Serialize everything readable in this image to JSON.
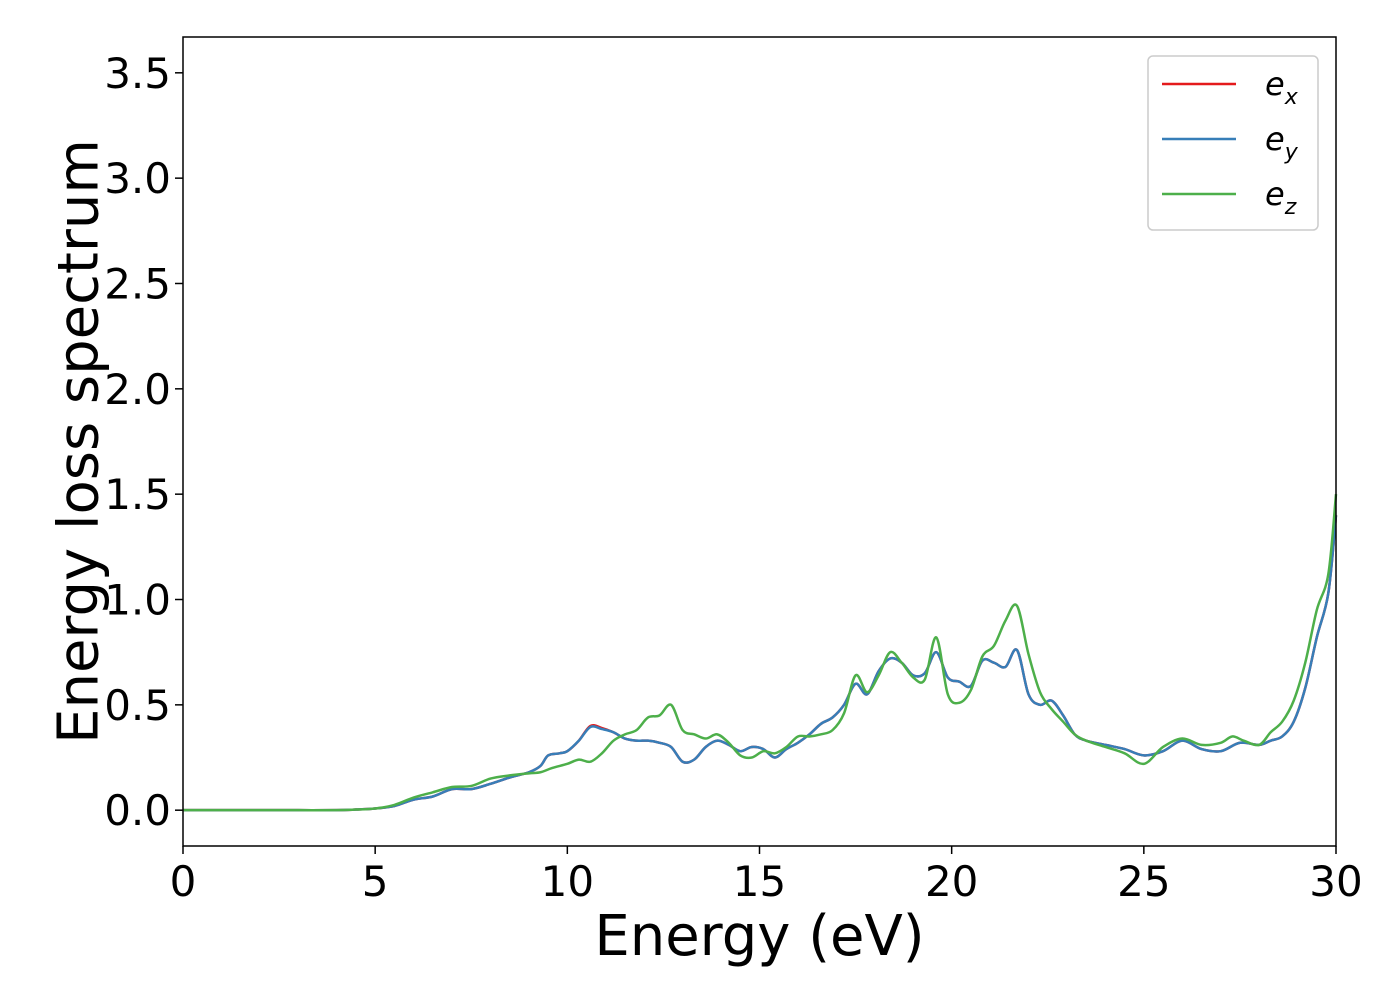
{
  "chart_data": {
    "type": "line",
    "xlabel": "Energy (eV)",
    "ylabel": "Energy loss spectrum",
    "xlim": [
      0,
      30
    ],
    "ylim": [
      -0.17,
      3.67
    ],
    "xticks": [
      0,
      5,
      10,
      15,
      20,
      25,
      30
    ],
    "yticks": [
      0.0,
      0.5,
      1.0,
      1.5,
      2.0,
      2.5,
      3.0,
      3.5
    ],
    "xtick_labels": [
      "0",
      "5",
      "10",
      "15",
      "20",
      "25",
      "30"
    ],
    "ytick_labels": [
      "0.0",
      "0.5",
      "1.0",
      "1.5",
      "2.0",
      "2.5",
      "3.0",
      "3.5"
    ],
    "grid": false,
    "legend_position": "top-right",
    "series": [
      {
        "name": "e_x",
        "legend_base": "e",
        "legend_sub": "x",
        "color": "#e41a1c",
        "x": [
          0,
          1,
          2,
          3,
          4,
          4.5,
          5,
          5.5,
          6,
          6.5,
          7,
          7.5,
          8,
          8.5,
          9,
          9.3,
          9.5,
          9.8,
          10,
          10.3,
          10.6,
          10.9,
          11.2,
          11.5,
          11.8,
          12.1,
          12.4,
          12.7,
          13,
          13.3,
          13.6,
          13.9,
          14.2,
          14.5,
          14.8,
          15.1,
          15.4,
          15.7,
          16,
          16.3,
          16.6,
          16.9,
          17.2,
          17.5,
          17.8,
          18.1,
          18.4,
          18.7,
          19,
          19.3,
          19.6,
          19.9,
          20.2,
          20.5,
          20.8,
          21.1,
          21.4,
          21.7,
          22,
          22.3,
          22.6,
          22.9,
          23.2,
          23.5,
          24,
          24.5,
          25,
          25.5,
          26,
          26.5,
          27,
          27.5,
          28,
          28.3,
          28.6,
          28.9,
          29.2,
          29.5,
          29.8,
          30
        ],
        "y": [
          0,
          0,
          0,
          0,
          0,
          0.003,
          0.008,
          0.02,
          0.05,
          0.065,
          0.1,
          0.1,
          0.125,
          0.155,
          0.18,
          0.21,
          0.26,
          0.27,
          0.28,
          0.33,
          0.4,
          0.39,
          0.37,
          0.34,
          0.33,
          0.33,
          0.32,
          0.3,
          0.23,
          0.24,
          0.3,
          0.33,
          0.31,
          0.28,
          0.3,
          0.29,
          0.25,
          0.29,
          0.32,
          0.36,
          0.41,
          0.44,
          0.5,
          0.6,
          0.55,
          0.66,
          0.72,
          0.7,
          0.64,
          0.65,
          0.75,
          0.63,
          0.61,
          0.59,
          0.71,
          0.7,
          0.68,
          0.76,
          0.55,
          0.5,
          0.52,
          0.45,
          0.36,
          0.33,
          0.31,
          0.29,
          0.26,
          0.28,
          0.33,
          0.29,
          0.28,
          0.32,
          0.31,
          0.33,
          0.35,
          0.42,
          0.58,
          0.82,
          1.03,
          1.4
        ]
      },
      {
        "name": "e_y",
        "legend_base": "e",
        "legend_sub": "y",
        "color": "#377eb8",
        "x": [
          0,
          1,
          2,
          3,
          4,
          4.5,
          5,
          5.5,
          6,
          6.5,
          7,
          7.5,
          8,
          8.5,
          9,
          9.3,
          9.5,
          9.8,
          10,
          10.3,
          10.6,
          10.9,
          11.2,
          11.5,
          11.8,
          12.1,
          12.4,
          12.7,
          13,
          13.3,
          13.6,
          13.9,
          14.2,
          14.5,
          14.8,
          15.1,
          15.4,
          15.7,
          16,
          16.3,
          16.6,
          16.9,
          17.2,
          17.5,
          17.8,
          18.1,
          18.4,
          18.7,
          19,
          19.3,
          19.6,
          19.9,
          20.2,
          20.5,
          20.8,
          21.1,
          21.4,
          21.7,
          22,
          22.3,
          22.6,
          22.9,
          23.2,
          23.5,
          24,
          24.5,
          25,
          25.5,
          26,
          26.5,
          27,
          27.5,
          28,
          28.3,
          28.6,
          28.9,
          29.2,
          29.5,
          29.8,
          30
        ],
        "y": [
          0,
          0,
          0,
          0,
          0,
          0.003,
          0.008,
          0.02,
          0.05,
          0.065,
          0.1,
          0.1,
          0.125,
          0.155,
          0.18,
          0.21,
          0.26,
          0.27,
          0.28,
          0.33,
          0.395,
          0.385,
          0.37,
          0.34,
          0.33,
          0.33,
          0.32,
          0.3,
          0.23,
          0.24,
          0.3,
          0.33,
          0.31,
          0.28,
          0.3,
          0.29,
          0.25,
          0.29,
          0.32,
          0.36,
          0.41,
          0.44,
          0.5,
          0.6,
          0.55,
          0.66,
          0.72,
          0.7,
          0.64,
          0.65,
          0.75,
          0.63,
          0.61,
          0.59,
          0.71,
          0.7,
          0.68,
          0.76,
          0.55,
          0.5,
          0.52,
          0.45,
          0.36,
          0.33,
          0.31,
          0.29,
          0.26,
          0.28,
          0.33,
          0.29,
          0.28,
          0.32,
          0.31,
          0.33,
          0.35,
          0.42,
          0.58,
          0.82,
          1.03,
          1.4
        ]
      },
      {
        "name": "e_z",
        "legend_base": "e",
        "legend_sub": "z",
        "color": "#4daf4a",
        "x": [
          0,
          1,
          2,
          3,
          4,
          4.5,
          5,
          5.5,
          6,
          6.5,
          7,
          7.5,
          8,
          8.5,
          9,
          9.3,
          9.6,
          10,
          10.3,
          10.6,
          10.9,
          11.2,
          11.5,
          11.8,
          12.1,
          12.4,
          12.7,
          13,
          13.3,
          13.6,
          13.9,
          14.2,
          14.5,
          14.8,
          15.1,
          15.4,
          15.7,
          16,
          16.3,
          16.6,
          16.9,
          17.2,
          17.5,
          17.8,
          18.1,
          18.4,
          18.7,
          19,
          19.3,
          19.6,
          19.9,
          20.2,
          20.5,
          20.8,
          21.1,
          21.4,
          21.7,
          22,
          22.3,
          22.6,
          22.9,
          23.2,
          23.5,
          24,
          24.5,
          25,
          25.5,
          26,
          26.5,
          27,
          27.3,
          27.6,
          28,
          28.3,
          28.6,
          28.9,
          29.2,
          29.5,
          29.8,
          30
        ],
        "y": [
          0,
          0,
          0,
          0,
          0,
          0.003,
          0.008,
          0.025,
          0.06,
          0.085,
          0.11,
          0.115,
          0.15,
          0.165,
          0.175,
          0.18,
          0.2,
          0.22,
          0.24,
          0.23,
          0.27,
          0.33,
          0.36,
          0.38,
          0.44,
          0.45,
          0.5,
          0.38,
          0.36,
          0.34,
          0.36,
          0.32,
          0.26,
          0.25,
          0.28,
          0.27,
          0.3,
          0.35,
          0.35,
          0.36,
          0.38,
          0.46,
          0.64,
          0.56,
          0.64,
          0.75,
          0.7,
          0.63,
          0.62,
          0.82,
          0.55,
          0.51,
          0.57,
          0.73,
          0.78,
          0.9,
          0.97,
          0.74,
          0.56,
          0.48,
          0.42,
          0.36,
          0.33,
          0.3,
          0.27,
          0.22,
          0.3,
          0.34,
          0.31,
          0.32,
          0.35,
          0.33,
          0.31,
          0.37,
          0.42,
          0.52,
          0.7,
          0.95,
          1.12,
          1.5
        ]
      }
    ]
  }
}
